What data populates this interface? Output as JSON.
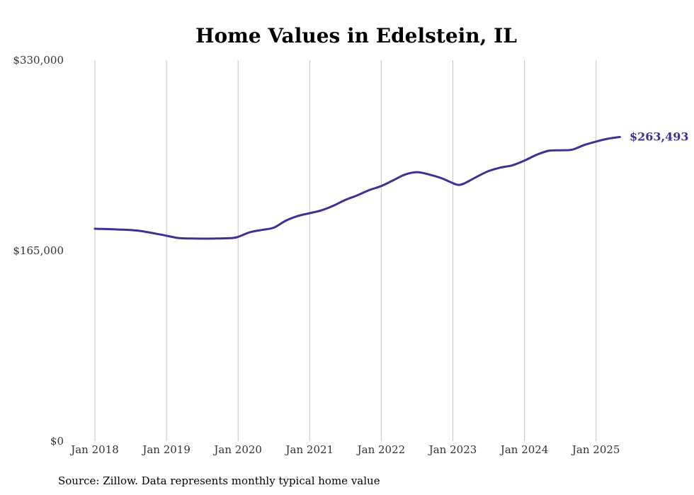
{
  "chart_data": {
    "type": "line",
    "title": "Home Values in Edelstein, IL",
    "xlabel": "",
    "ylabel": "",
    "ylim": [
      0,
      330000
    ],
    "xlim": [
      "2018-01",
      "2025-05"
    ],
    "y_ticks": [
      {
        "value": 0,
        "label": "$0"
      },
      {
        "value": 165000,
        "label": "$165,000"
      },
      {
        "value": 330000,
        "label": "$330,000"
      }
    ],
    "x_ticks": [
      {
        "value": "2018-01",
        "label": "Jan 2018"
      },
      {
        "value": "2019-01",
        "label": "Jan 2019"
      },
      {
        "value": "2020-01",
        "label": "Jan 2020"
      },
      {
        "value": "2021-01",
        "label": "Jan 2021"
      },
      {
        "value": "2022-01",
        "label": "Jan 2022"
      },
      {
        "value": "2023-01",
        "label": "Jan 2023"
      },
      {
        "value": "2024-01",
        "label": "Jan 2024"
      },
      {
        "value": "2025-01",
        "label": "Jan 2025"
      }
    ],
    "grid": {
      "vertical": true,
      "horizontal": false
    },
    "legend": "none",
    "end_label": "$263,493",
    "color": "#3a3393",
    "series": [
      {
        "x": [
          "2018-01",
          "2018-04",
          "2018-08",
          "2018-12",
          "2019-03",
          "2019-06",
          "2019-09",
          "2019-12",
          "2020-01",
          "2020-03",
          "2020-05",
          "2020-07",
          "2020-09",
          "2020-11",
          "2021-01",
          "2021-03",
          "2021-05",
          "2021-07",
          "2021-09",
          "2021-11",
          "2022-01",
          "2022-03",
          "2022-05",
          "2022-07",
          "2022-09",
          "2022-11",
          "2023-01",
          "2023-02",
          "2023-03",
          "2023-05",
          "2023-07",
          "2023-09",
          "2023-11",
          "2024-01",
          "2024-03",
          "2024-05",
          "2024-07",
          "2024-09",
          "2024-11",
          "2025-01",
          "2025-03",
          "2025-05"
        ],
        "y": [
          184000,
          183500,
          182500,
          179000,
          176000,
          175500,
          175500,
          176000,
          177000,
          181000,
          183000,
          185000,
          191000,
          195000,
          197500,
          200000,
          204000,
          209000,
          213000,
          217500,
          221000,
          226000,
          231000,
          233000,
          231000,
          228000,
          223500,
          222000,
          223500,
          229000,
          234000,
          237000,
          239000,
          243000,
          248000,
          251500,
          252000,
          252500,
          256500,
          259500,
          262000,
          263493
        ]
      }
    ]
  },
  "source_note": "Source: Zillow. Data represents monthly typical home value"
}
